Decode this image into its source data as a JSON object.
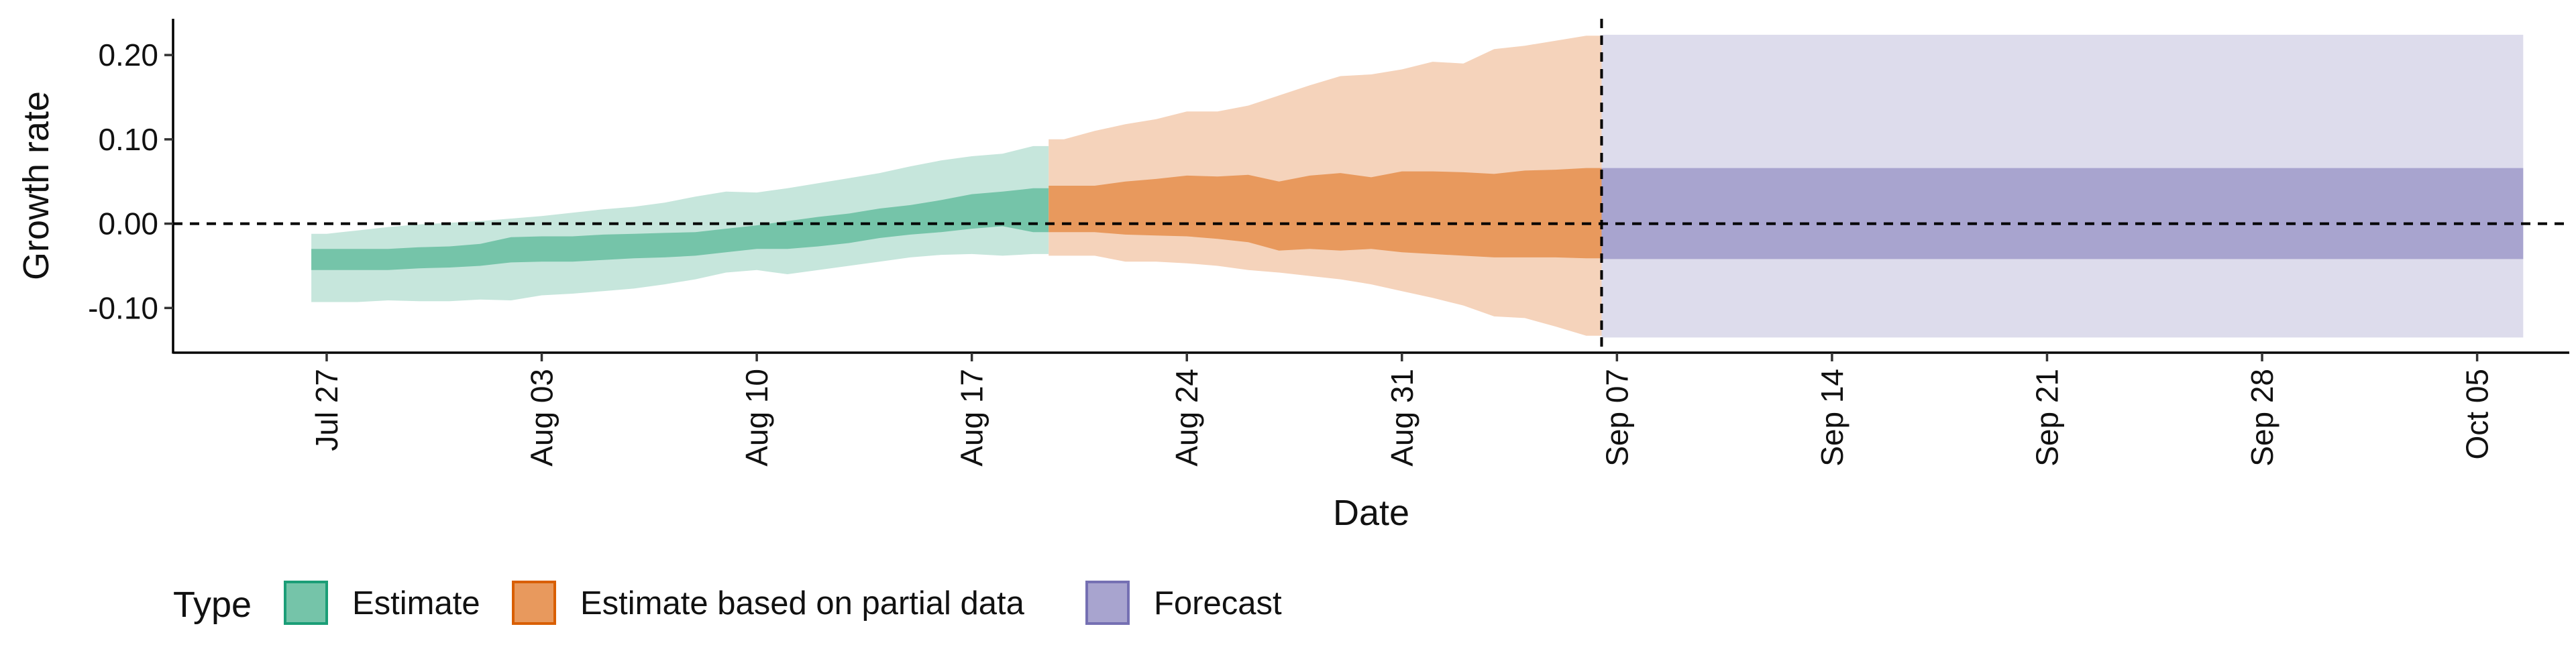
{
  "chart_data": {
    "type": "area",
    "xlabel": "Date",
    "ylabel": "Growth rate",
    "y_ticks": [
      0.2,
      0.1,
      0.0,
      -0.1
    ],
    "y_tick_labels": [
      "0.20",
      "0.10",
      "0.00",
      "-0.10"
    ],
    "ylim": [
      -0.153,
      0.243
    ],
    "xlim": [
      "2020-07-22",
      "2020-10-08"
    ],
    "x_ticks": [
      "2020-07-27",
      "2020-08-03",
      "2020-08-10",
      "2020-08-17",
      "2020-08-24",
      "2020-08-31",
      "2020-09-07",
      "2020-09-14",
      "2020-09-21",
      "2020-09-28",
      "2020-10-05"
    ],
    "x_tick_labels": [
      "Jul 27",
      "Aug 03",
      "Aug 10",
      "Aug 17",
      "Aug 24",
      "Aug 31",
      "Sep 07",
      "Sep 14",
      "Sep 21",
      "Sep 28",
      "Oct 05"
    ],
    "reference_lines": {
      "horizontal_y": 0.0,
      "vertical_x": "2020-09-06"
    },
    "legend": {
      "title": "Type",
      "position": "bottom",
      "entries": [
        {
          "label": "Estimate",
          "fill": "#75c4a9",
          "stroke": "#1b9e77"
        },
        {
          "label": "Estimate based on partial data",
          "fill": "#e8995d",
          "stroke": "#d95f02"
        },
        {
          "label": "Forecast",
          "fill": "#a8a4cf",
          "stroke": "#7570b3"
        }
      ]
    },
    "series": [
      {
        "name": "Estimate",
        "inner_fill": "#75c4a9",
        "outer_fill": "#c6e6dc",
        "x": [
          "2020-07-27",
          "2020-07-28",
          "2020-07-29",
          "2020-07-30",
          "2020-07-31",
          "2020-08-01",
          "2020-08-02",
          "2020-08-03",
          "2020-08-04",
          "2020-08-05",
          "2020-08-06",
          "2020-08-07",
          "2020-08-08",
          "2020-08-09",
          "2020-08-10",
          "2020-08-11",
          "2020-08-12",
          "2020-08-13",
          "2020-08-14",
          "2020-08-15",
          "2020-08-16",
          "2020-08-17",
          "2020-08-18",
          "2020-08-19"
        ],
        "lower90": [
          -0.093,
          -0.093,
          -0.091,
          -0.092,
          -0.092,
          -0.09,
          -0.091,
          -0.085,
          -0.083,
          -0.08,
          -0.077,
          -0.072,
          -0.066,
          -0.058,
          -0.055,
          -0.06,
          -0.055,
          -0.05,
          -0.045,
          -0.04,
          -0.037,
          -0.036,
          -0.038,
          -0.036
        ],
        "lower50": [
          -0.055,
          -0.055,
          -0.055,
          -0.053,
          -0.052,
          -0.05,
          -0.046,
          -0.045,
          -0.045,
          -0.043,
          -0.041,
          -0.04,
          -0.038,
          -0.034,
          -0.03,
          -0.03,
          -0.027,
          -0.023,
          -0.017,
          -0.013,
          -0.01,
          -0.006,
          -0.003,
          -0.01
        ],
        "upper50": [
          -0.03,
          -0.03,
          -0.03,
          -0.028,
          -0.027,
          -0.024,
          -0.016,
          -0.015,
          -0.015,
          -0.013,
          -0.012,
          -0.011,
          -0.01,
          -0.006,
          -0.002,
          0.003,
          0.008,
          0.012,
          0.018,
          0.022,
          0.028,
          0.035,
          0.038,
          0.042
        ],
        "upper90": [
          -0.012,
          -0.008,
          -0.004,
          -0.001,
          0.001,
          0.003,
          0.006,
          0.009,
          0.013,
          0.017,
          0.02,
          0.025,
          0.032,
          0.038,
          0.037,
          0.042,
          0.048,
          0.054,
          0.06,
          0.068,
          0.075,
          0.08,
          0.083,
          0.092
        ]
      },
      {
        "name": "Estimate based on partial data",
        "inner_fill": "#e8995d",
        "outer_fill": "#f5d3bb",
        "x": [
          "2020-08-20",
          "2020-08-21",
          "2020-08-22",
          "2020-08-23",
          "2020-08-24",
          "2020-08-25",
          "2020-08-26",
          "2020-08-27",
          "2020-08-28",
          "2020-08-29",
          "2020-08-30",
          "2020-08-31",
          "2020-09-01",
          "2020-09-02",
          "2020-09-03",
          "2020-09-04",
          "2020-09-05",
          "2020-09-06"
        ],
        "lower90": [
          -0.038,
          -0.038,
          -0.045,
          -0.045,
          -0.047,
          -0.05,
          -0.055,
          -0.058,
          -0.062,
          -0.066,
          -0.072,
          -0.08,
          -0.088,
          -0.097,
          -0.11,
          -0.112,
          -0.122,
          -0.133
        ],
        "lower50": [
          -0.01,
          -0.01,
          -0.013,
          -0.014,
          -0.015,
          -0.018,
          -0.022,
          -0.032,
          -0.03,
          -0.032,
          -0.03,
          -0.034,
          -0.036,
          -0.038,
          -0.04,
          -0.04,
          -0.04,
          -0.041
        ],
        "upper50": [
          0.045,
          0.045,
          0.05,
          0.053,
          0.057,
          0.056,
          0.058,
          0.05,
          0.057,
          0.06,
          0.055,
          0.062,
          0.062,
          0.061,
          0.059,
          0.063,
          0.064,
          0.066
        ],
        "upper90": [
          0.1,
          0.11,
          0.118,
          0.124,
          0.133,
          0.133,
          0.14,
          0.152,
          0.164,
          0.175,
          0.177,
          0.183,
          0.192,
          0.19,
          0.207,
          0.211,
          0.217,
          0.223
        ]
      },
      {
        "name": "Forecast",
        "inner_fill": "#a8a4cf",
        "outer_fill": "#dddcec",
        "x": [
          "2020-09-07",
          "2020-10-06"
        ],
        "lower90": [
          -0.135,
          -0.135
        ],
        "lower50": [
          -0.042,
          -0.042
        ],
        "upper50": [
          0.066,
          0.066
        ],
        "upper90": [
          0.224,
          0.224
        ]
      }
    ]
  }
}
